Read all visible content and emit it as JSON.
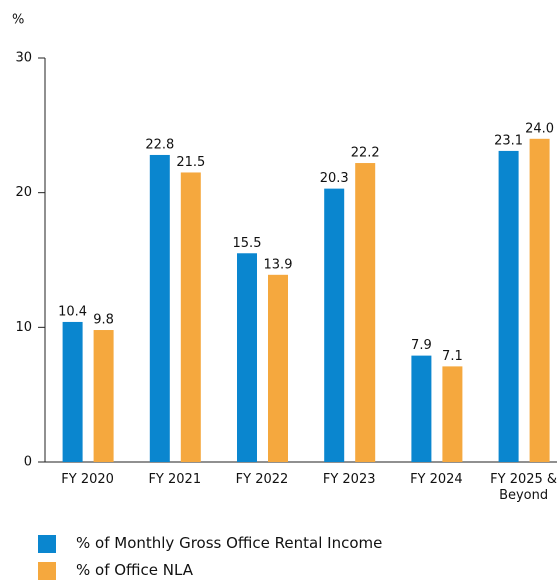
{
  "chart_data": {
    "type": "bar",
    "y_label": "%",
    "categories": [
      "FY 2020",
      "FY 2021",
      "FY 2022",
      "FY 2023",
      "FY 2024",
      "FY 2025 & Beyond"
    ],
    "series": [
      {
        "name": "% of Monthly Gross Office Rental Income",
        "color": "#0a86cf",
        "values": [
          10.4,
          22.8,
          15.5,
          20.3,
          7.9,
          23.1
        ],
        "value_labels": [
          "10.4",
          "22.8",
          "15.5",
          "20.3",
          "7.9",
          "23.1"
        ]
      },
      {
        "name": "% of Office NLA",
        "color": "#f5a83e",
        "values": [
          9.8,
          21.5,
          13.9,
          22.2,
          7.1,
          24.0
        ],
        "value_labels": [
          "9.8",
          "21.5",
          "13.9",
          "22.2",
          "7.1",
          "24.0"
        ]
      }
    ],
    "ylim": [
      0,
      30
    ],
    "yticks": [
      0,
      10,
      20,
      30
    ],
    "grid": false
  }
}
